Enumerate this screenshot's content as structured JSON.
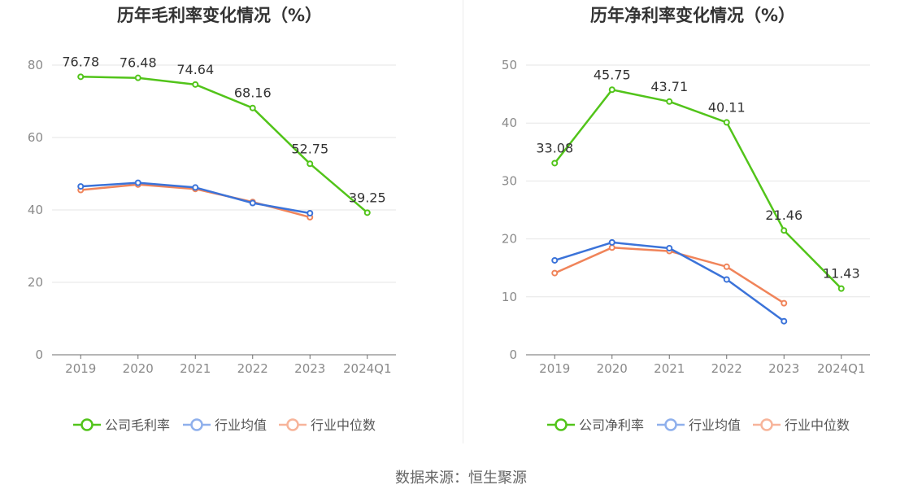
{
  "chart_data": [
    {
      "type": "line",
      "title": "历年毛利率变化情况（%）",
      "categories": [
        "2019",
        "2020",
        "2021",
        "2022",
        "2023",
        "2024Q1"
      ],
      "ylim": [
        0,
        80
      ],
      "yticks": [
        0,
        20,
        40,
        60,
        80
      ],
      "series": [
        {
          "name": "公司毛利率",
          "color": "#52c41a",
          "labels": true,
          "values": [
            76.78,
            76.48,
            74.64,
            68.16,
            52.75,
            39.25
          ]
        },
        {
          "name": "行业均值",
          "color": "#3b73d9",
          "labels": false,
          "values": [
            46.5,
            47.5,
            46.2,
            41.9,
            39.1,
            null
          ]
        },
        {
          "name": "行业中位数",
          "color": "#f0845a",
          "labels": false,
          "values": [
            45.5,
            47.0,
            45.8,
            42.2,
            38.0,
            null
          ]
        }
      ]
    },
    {
      "type": "line",
      "title": "历年净利率变化情况（%）",
      "categories": [
        "2019",
        "2020",
        "2021",
        "2022",
        "2023",
        "2024Q1"
      ],
      "ylim": [
        0,
        50
      ],
      "yticks": [
        0,
        10,
        20,
        30,
        40,
        50
      ],
      "series": [
        {
          "name": "公司净利率",
          "color": "#52c41a",
          "labels": true,
          "values": [
            33.08,
            45.75,
            43.71,
            40.11,
            21.46,
            11.43
          ]
        },
        {
          "name": "行业均值",
          "color": "#3b73d9",
          "labels": false,
          "values": [
            16.3,
            19.4,
            18.4,
            13.0,
            5.8,
            null
          ]
        },
        {
          "name": "行业中位数",
          "color": "#f0845a",
          "labels": false,
          "values": [
            14.1,
            18.5,
            17.9,
            15.2,
            8.9,
            null
          ]
        }
      ]
    }
  ],
  "legend_colors": [
    "#52c41a",
    "#8fb0ec",
    "#f7b49a"
  ],
  "footer": {
    "source": "数据来源：恒生聚源"
  }
}
